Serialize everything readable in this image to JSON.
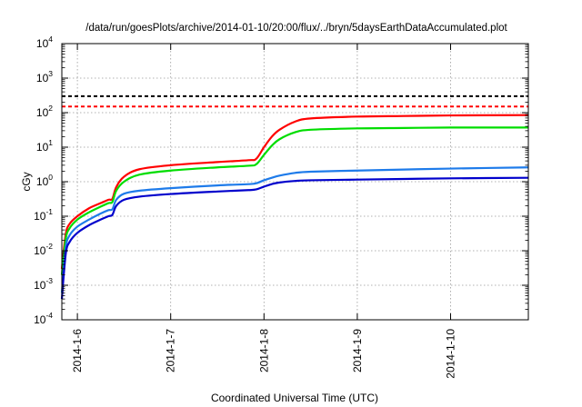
{
  "chart_data": {
    "type": "line",
    "title": "/data/run/goesPlots/archive/2014-01-10/20:00/flux/../bryn/5daysEarthDataAccumulated.plot",
    "xlabel": "Coordinated Universal Time (UTC)",
    "ylabel": "cGy",
    "yscale": "log",
    "ylim": [
      0.0001,
      10000
    ],
    "yticks": [
      {
        "value": 0.0001,
        "base": "10",
        "exp": "-4"
      },
      {
        "value": 0.001,
        "base": "10",
        "exp": "-3"
      },
      {
        "value": 0.01,
        "base": "10",
        "exp": "-2"
      },
      {
        "value": 0.1,
        "base": "10",
        "exp": "-1"
      },
      {
        "value": 1,
        "base": "10",
        "exp": "0"
      },
      {
        "value": 10,
        "base": "10",
        "exp": "1"
      },
      {
        "value": 100,
        "base": "10",
        "exp": "2"
      },
      {
        "value": 1000,
        "base": "10",
        "exp": "3"
      },
      {
        "value": 10000,
        "base": "10",
        "exp": "4"
      }
    ],
    "xlim": [
      "2014-01-05 20:00",
      "2014-01-10 20:00"
    ],
    "xticks": [
      {
        "value": "2014-01-06 00:00",
        "label": "2014-1-6"
      },
      {
        "value": "2014-01-07 00:00",
        "label": "2014-1-7"
      },
      {
        "value": "2014-01-08 00:00",
        "label": "2014-1-8"
      },
      {
        "value": "2014-01-09 00:00",
        "label": "2014-1-9"
      },
      {
        "value": "2014-01-10 00:00",
        "label": "2014-1-10"
      }
    ],
    "grid": true,
    "reference_lines": [
      {
        "y": 300,
        "color": "#000000",
        "style": "dashed"
      },
      {
        "y": 150,
        "color": "#ff0000",
        "style": "dashed"
      }
    ],
    "series": [
      {
        "color": "#ff0000",
        "x": [
          "2014-01-05 20:00",
          "2014-01-05 21:00",
          "2014-01-05 22:00",
          "2014-01-06 00:00",
          "2014-01-06 03:00",
          "2014-01-06 06:00",
          "2014-01-06 08:00",
          "2014-01-06 09:00",
          "2014-01-06 10:00",
          "2014-01-06 12:00",
          "2014-01-06 16:00",
          "2014-01-07 00:00",
          "2014-01-07 12:00",
          "2014-01-07 20:00",
          "2014-01-07 22:00",
          "2014-01-08 00:00",
          "2014-01-08 02:00",
          "2014-01-08 04:00",
          "2014-01-08 08:00",
          "2014-01-08 12:00",
          "2014-01-09 00:00",
          "2014-01-09 12:00",
          "2014-01-10 00:00",
          "2014-01-10 20:00"
        ],
        "y": [
          0.003,
          0.03,
          0.06,
          0.1,
          0.17,
          0.24,
          0.3,
          0.32,
          0.7,
          1.4,
          2.3,
          3.0,
          3.7,
          4.2,
          4.6,
          10,
          20,
          32,
          55,
          68,
          77,
          80,
          83,
          85
        ]
      },
      {
        "color": "#00dd00",
        "x": [
          "2014-01-05 20:00",
          "2014-01-05 21:00",
          "2014-01-05 22:00",
          "2014-01-06 00:00",
          "2014-01-06 03:00",
          "2014-01-06 06:00",
          "2014-01-06 08:00",
          "2014-01-06 09:00",
          "2014-01-06 10:00",
          "2014-01-06 12:00",
          "2014-01-06 16:00",
          "2014-01-07 00:00",
          "2014-01-07 12:00",
          "2014-01-07 20:00",
          "2014-01-07 22:00",
          "2014-01-08 00:00",
          "2014-01-08 02:00",
          "2014-01-08 04:00",
          "2014-01-08 08:00",
          "2014-01-08 12:00",
          "2014-01-09 00:00",
          "2014-01-09 12:00",
          "2014-01-10 00:00",
          "2014-01-10 20:00"
        ],
        "y": [
          0.002,
          0.022,
          0.045,
          0.08,
          0.13,
          0.19,
          0.24,
          0.26,
          0.55,
          1.0,
          1.6,
          2.1,
          2.6,
          2.9,
          3.2,
          6,
          11,
          17,
          27,
          32,
          35,
          36,
          37,
          37
        ]
      },
      {
        "color": "#1e7bea",
        "x": [
          "2014-01-05 20:00",
          "2014-01-05 21:00",
          "2014-01-05 22:00",
          "2014-01-06 00:00",
          "2014-01-06 03:00",
          "2014-01-06 06:00",
          "2014-01-06 08:00",
          "2014-01-06 09:00",
          "2014-01-06 10:00",
          "2014-01-06 12:00",
          "2014-01-06 16:00",
          "2014-01-07 00:00",
          "2014-01-07 12:00",
          "2014-01-07 20:00",
          "2014-01-07 22:00",
          "2014-01-08 00:00",
          "2014-01-08 02:00",
          "2014-01-08 04:00",
          "2014-01-08 08:00",
          "2014-01-08 12:00",
          "2014-01-09 00:00",
          "2014-01-09 12:00",
          "2014-01-10 00:00",
          "2014-01-10 20:00"
        ],
        "y": [
          0.0006,
          0.012,
          0.028,
          0.05,
          0.08,
          0.12,
          0.15,
          0.16,
          0.3,
          0.45,
          0.55,
          0.65,
          0.78,
          0.85,
          0.9,
          1.1,
          1.3,
          1.5,
          1.8,
          1.95,
          2.1,
          2.25,
          2.4,
          2.6
        ]
      },
      {
        "color": "#0000cc",
        "x": [
          "2014-01-05 20:00",
          "2014-01-05 21:00",
          "2014-01-05 22:00",
          "2014-01-06 00:00",
          "2014-01-06 03:00",
          "2014-01-06 06:00",
          "2014-01-06 08:00",
          "2014-01-06 09:00",
          "2014-01-06 10:00",
          "2014-01-06 12:00",
          "2014-01-06 16:00",
          "2014-01-07 00:00",
          "2014-01-07 12:00",
          "2014-01-07 20:00",
          "2014-01-07 22:00",
          "2014-01-08 00:00",
          "2014-01-08 02:00",
          "2014-01-08 04:00",
          "2014-01-08 08:00",
          "2014-01-08 12:00",
          "2014-01-09 00:00",
          "2014-01-09 12:00",
          "2014-01-10 00:00",
          "2014-01-10 20:00"
        ],
        "y": [
          0.0004,
          0.008,
          0.018,
          0.033,
          0.055,
          0.08,
          0.1,
          0.11,
          0.2,
          0.3,
          0.37,
          0.44,
          0.52,
          0.57,
          0.6,
          0.72,
          0.85,
          0.95,
          1.05,
          1.1,
          1.15,
          1.2,
          1.25,
          1.3
        ]
      }
    ]
  }
}
